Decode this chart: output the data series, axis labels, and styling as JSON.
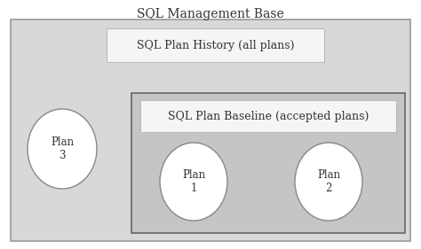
{
  "title": "SQL Management Base",
  "title_fontsize": 10,
  "history_label": "SQL Plan History (all plans)",
  "history_label_fontsize": 9,
  "baseline_label": "SQL Plan Baseline (accepted plans)",
  "baseline_label_fontsize": 9,
  "plan1_label": "Plan\n1",
  "plan2_label": "Plan\n2",
  "plan3_label": "Plan\n3",
  "plan_fontsize": 8.5,
  "bg_color": "#ffffff",
  "outer_box_fill": "#d8d8d8",
  "outer_box_edge": "#999999",
  "history_label_box_fill": "#f5f5f5",
  "history_label_box_edge": "#bbbbbb",
  "inner_box_fill": "#c5c5c5",
  "inner_box_edge": "#666666",
  "baseline_label_box_fill": "#f5f5f5",
  "baseline_label_box_edge": "#bbbbbb",
  "ellipse_fill": "#ffffff",
  "ellipse_edge": "#888888",
  "text_color": "#333333"
}
